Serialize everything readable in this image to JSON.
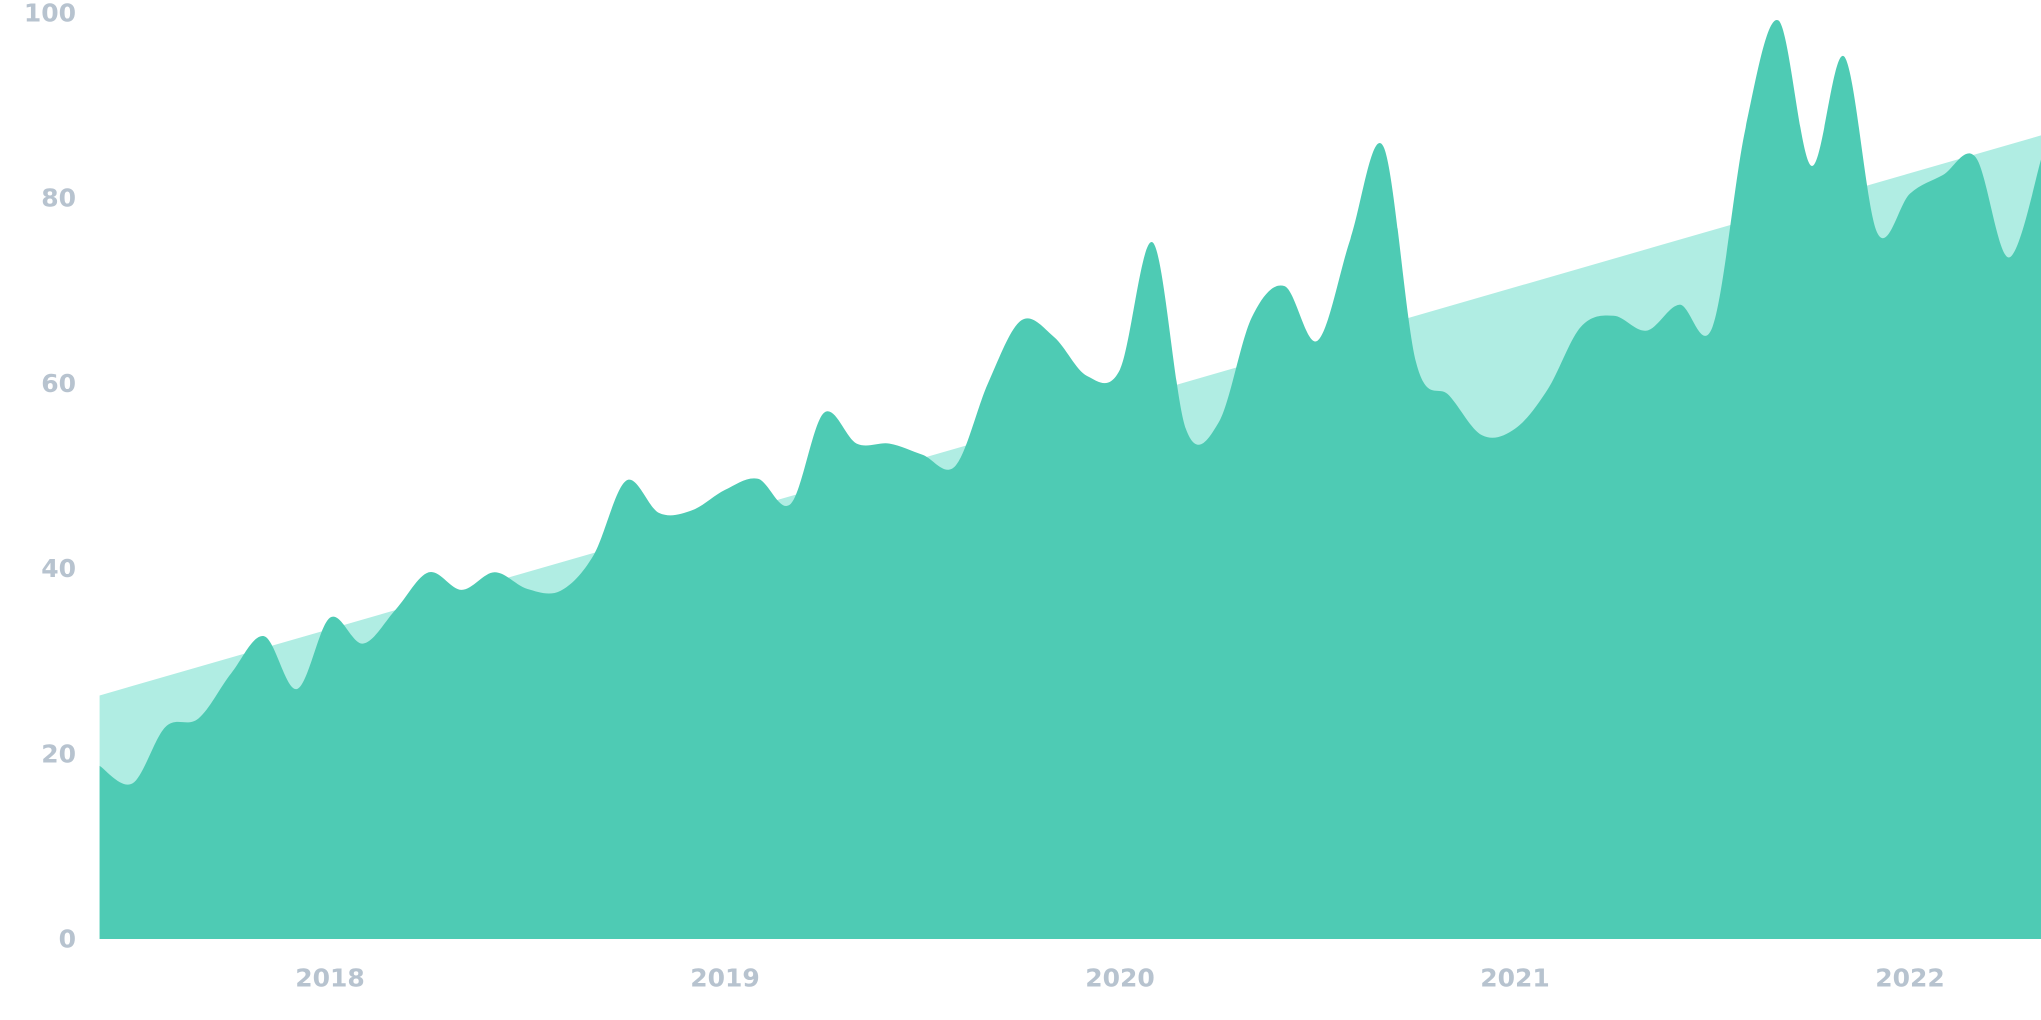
{
  "chart_data": {
    "type": "area",
    "title": "",
    "xlabel": "",
    "ylabel": "",
    "ylim": [
      0,
      100
    ],
    "grid": false,
    "legend": "none",
    "y_ticks": [
      "0",
      "20",
      "40",
      "60",
      "80",
      "100"
    ],
    "x_ticks": [
      "2018",
      "2019",
      "2020",
      "2021",
      "2022"
    ],
    "colors": {
      "series": "#4ecbb4",
      "trend": "#b0ede3",
      "tick_labels": "#b7c3cf"
    },
    "x": [
      "2017-06",
      "2017-07",
      "2017-08",
      "2017-09",
      "2017-10",
      "2017-11",
      "2017-12",
      "2018-01",
      "2018-02",
      "2018-03",
      "2018-04",
      "2018-05",
      "2018-06",
      "2018-07",
      "2018-08",
      "2018-09",
      "2018-10",
      "2018-11",
      "2018-12",
      "2019-01",
      "2019-02",
      "2019-03",
      "2019-04",
      "2019-05",
      "2019-06",
      "2019-07",
      "2019-08",
      "2019-09",
      "2019-10",
      "2019-11",
      "2019-12",
      "2020-01",
      "2020-02",
      "2020-03",
      "2020-04",
      "2020-05",
      "2020-06",
      "2020-07",
      "2020-08",
      "2020-09",
      "2020-10",
      "2020-11",
      "2020-12",
      "2021-01",
      "2021-02",
      "2021-03",
      "2021-04",
      "2021-05",
      "2021-06",
      "2021-07",
      "2021-08",
      "2021-09",
      "2021-10",
      "2021-11",
      "2021-12",
      "2022-01",
      "2022-02",
      "2022-03",
      "2022-04",
      "2022-05"
    ],
    "series": [
      {
        "values": [
          18.7,
          16.8,
          22.9,
          23.8,
          28.7,
          32.7,
          27.0,
          34.7,
          31.9,
          35.6,
          39.6,
          37.7,
          39.6,
          37.8,
          37.6,
          41.4,
          49.5,
          46.0,
          46.3,
          48.5,
          49.7,
          47.0,
          56.8,
          53.5,
          53.5,
          52.3,
          51.1,
          60.1,
          66.8,
          65.0,
          60.8,
          61.5,
          75.2,
          55.1,
          55.8,
          67.1,
          70.5,
          64.6,
          75.6,
          85.6,
          62.2,
          58.7,
          54.4,
          55.1,
          59.4,
          66.1,
          67.3,
          65.7,
          68.5,
          66.1,
          87.5,
          99.2,
          83.5,
          95.3,
          76.3,
          80.5,
          82.5,
          84.4,
          73.6,
          84.4
        ]
      }
    ],
    "trend": {
      "start": [
        "2017-06",
        26.3
      ],
      "end": [
        "2022-05",
        86.8
      ]
    }
  }
}
